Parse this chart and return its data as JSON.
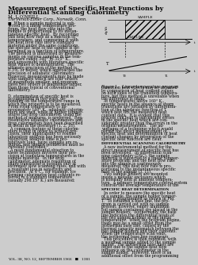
{
  "title_line1": "Measurement of Specific Heat Functions by",
  "title_line2": "Differential Scanning Calorimetry",
  "author": "M. J. O’NEILL",
  "affiliation": "The Perkin-Elmer Corp., Norwalk, Conn.",
  "abstract_lines": [
    "■  When a sample material is sub-",
    "jected to a linear temperature pro-",
    "gram, the heat flow rate into the",
    "sample is proportional to its instan-",
    "taneous specific heat.  By recording",
    "this heat flow rate as a function of",
    "temperature, and comparing it with",
    "the heat flow rate into a standard",
    "material under the same conditions,",
    "the specific heat of the sample is de-",
    "termined as a function of temperature.",
    "The method is illustrated by measure-",
    "ments on various samples in the tem-",
    "perature range 340° to 310° K.,",
    "and agreement with literature specific",
    "heat values is demonstrated.  The",
    "ultimate precision of the method is",
    "0.3%, or better, which approaches the",
    "precision of adiabatic calorimetry.",
    "However, measurements may be made",
    "with samples which are four orders",
    "of magnitude smaller, and program",
    "rates two orders of magnitude larger,",
    "than those typical of conventional",
    "calorimetry."
  ],
  "left_col_lines": [
    "D  etermination of specific heat is",
    "accomplished in two ways, de-",
    "pending on the temperature range in",
    "which the property is to be measured.",
    "From room temperature to ap-",
    "proximately 160° K., adiabatic calorim-",
    "eters are used, while at higher temper-",
    "atures the drop calorimeter, using the",
    "method of mixtures, is preferred.  Rep-",
    "resentative adiabatic calorimeters and",
    "drop calorimeters have been described",
    "in detail in the literature (1, 2, 18).",
    "  A common feature of these calorim-",
    "eters is that in order to achieve pre-",
    "cision, their applicability to routine",
    "laboratory analysis has been seriously",
    "restricted; analysis time is pro-",
    "hibitively long, large samples are re-",
    "quired, and sample geometries must be",
    "carefully controlled.",
    "  A more fundamental objection to",
    "these techniques involves their pre-",
    "cision at transition temperatures in the",
    "sample material.  In the drop",
    "calorimeter, adequate resolution of",
    "sharp transitions is possible only at",
    "extremely slow scanning rates, and with",
    "a resultant loss in sensitivity and",
    "precision.  At 4°C., for example, ice",
    "forming calorimeter heat contents re-",
    "ferred to a standard temperature",
    "(usually 298.15° K.) are measured;"
  ],
  "right_col_top_lines": [
    "transition heat effects may be obtained",
    "by comparison of heat content values",
    "on both sides of the transition tempera-",
    "ture, but this method is unreliable when",
    "the difference is small.",
    "  At temperatures above 160° K.,",
    "specific heats in the absence of sharp",
    "transitions are obtained by differentia-",
    "tion of the algebraic function of T",
    "which best fits the measured heat",
    "content data.  It is evident that this",
    "process can lead to percentage errors",
    "in the specific heat which are con-",
    "siderably greater than the errors in the",
    "original measurements.  The ad-",
    "vantages of a technique which would",
    "permit the direct measurement of",
    "specific heat and determination of heat",
    "content changes by integration of the",
    "specific heat function are clear."
  ],
  "section2_head": "DIFFERENTIAL SCANNING CALORIMETRY",
  "right_col_mid_lines": [
    "  A new instrumental method for the",
    "direct measurement of specific heat has",
    "been developed.  In differential scan-",
    "ning calorimetry (DSC), the sample",
    "material is subjected to a linear temper-",
    "ature program, and the heat flow rate",
    "into the sample is continuously",
    "measured; this heat flow rate is pro-",
    "portional to the instantaneous specific",
    "heat of the sample (3, 11).",
    "  Two sample holders are mounted",
    "inside a metallic enclosure which",
    "is normally held at ambient tempera-",
    "ture.  A primary temperature control system",
    "controls the average temperature of the"
  ],
  "section3_head": "SPECIFIC HEAT DETERMINATION",
  "right_col_bot_lines": [
    "  In order to measure the specific heat",
    "of a sample, the sample holder temper-",
    "ature is programmed as shown in Fig.",
    "1.  To establish a base line, the pro-",
    "gram is carried out with no sample",
    "present; however, empty aluminum",
    "foil sample containers are placed in the",
    "sample holders.  Isothermally, the base",
    "line indicates the differential levels of",
    "the two sample holders at the initial",
    "temperature.  When the program begins,",
    "there may be a small offset from the",
    "isothermal base line, caused by the",
    "thermal capacity mismatch between the",
    "two sample holders and their contents.",
    "When the temperature scan ends,",
    "the isothermal base line reappears.",
    "  This procedure is then repeated, with",
    "a weighed sample added to the sample",
    "holder.  The isothermal base lines are",
    "offset due to the sample heat flow",
    "influence on the calorimeter in the",
    "sample holder.  However, there is an",
    "additional offset from the programming"
  ],
  "figure_caption": "Figure 1.   Linear temperature program",
  "footer": "VOL. 38, NO. 12, SEPTEMBER 1966   ■   1381",
  "page_bg": "#ffffff",
  "text_color": "#1a1a1a"
}
